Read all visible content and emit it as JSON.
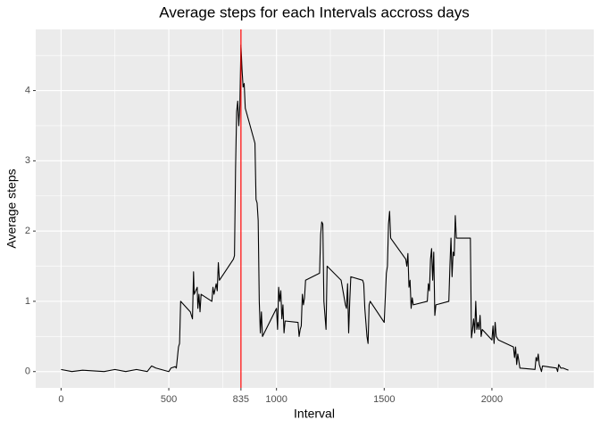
{
  "chart_data": {
    "type": "line",
    "title": "Average steps for each Intervals accross days",
    "x_label": "Interval",
    "y_label": "Average steps",
    "xlim": [
      -117.75,
      2472.75
    ],
    "ylim": [
      -0.232,
      4.87
    ],
    "xticks": [
      0,
      500,
      835,
      1000,
      1500,
      2000
    ],
    "yticks": [
      0,
      1,
      2,
      3,
      4
    ],
    "x_minor_ticks": [
      250,
      750,
      1250,
      1750,
      2250
    ],
    "y_minor_ticks": [
      0.5,
      1.5,
      2.5,
      3.5,
      4.5
    ],
    "grid": true,
    "vline": {
      "x": 835,
      "color": "#ff0000"
    },
    "series": [
      {
        "color": "#000000",
        "x": [
          0,
          50,
          100,
          150,
          200,
          250,
          300,
          350,
          400,
          420,
          440,
          500,
          510,
          530,
          535,
          545,
          550,
          555,
          600,
          610,
          615,
          618,
          632,
          635,
          640,
          645,
          650,
          700,
          705,
          710,
          720,
          725,
          730,
          735,
          800,
          805,
          810,
          815,
          820,
          825,
          830,
          835,
          840,
          845,
          850,
          855,
          900,
          905,
          910,
          915,
          920,
          925,
          930,
          935,
          1000,
          1005,
          1010,
          1015,
          1020,
          1025,
          1030,
          1035,
          1040,
          1100,
          1105,
          1110,
          1115,
          1120,
          1125,
          1130,
          1135,
          1200,
          1205,
          1210,
          1215,
          1220,
          1225,
          1230,
          1235,
          1300,
          1320,
          1325,
          1330,
          1335,
          1340,
          1345,
          1400,
          1405,
          1410,
          1415,
          1420,
          1425,
          1430,
          1435,
          1500,
          1505,
          1510,
          1515,
          1520,
          1525,
          1530,
          1600,
          1605,
          1610,
          1615,
          1620,
          1625,
          1630,
          1635,
          1700,
          1705,
          1710,
          1715,
          1720,
          1725,
          1730,
          1735,
          1740,
          1800,
          1805,
          1810,
          1815,
          1820,
          1825,
          1830,
          1835,
          1900,
          1905,
          1910,
          1915,
          1920,
          1925,
          1930,
          1935,
          1940,
          1945,
          1950,
          1955,
          2000,
          2005,
          2010,
          2015,
          2020,
          2030,
          2100,
          2105,
          2110,
          2115,
          2120,
          2130,
          2200,
          2205,
          2210,
          2215,
          2220,
          2230,
          2235,
          2300,
          2305,
          2310,
          2320,
          2330,
          2355
        ],
        "values": [
          0.03,
          0.0,
          0.02,
          0.01,
          0.0,
          0.03,
          0.0,
          0.03,
          0.0,
          0.08,
          0.05,
          0.0,
          0.05,
          0.07,
          0.05,
          0.35,
          0.4,
          1.0,
          0.85,
          0.75,
          1.42,
          1.1,
          1.2,
          0.9,
          1.1,
          0.85,
          1.1,
          1.0,
          1.2,
          1.1,
          1.25,
          1.15,
          1.55,
          1.3,
          1.6,
          1.65,
          2.9,
          3.7,
          3.85,
          3.5,
          3.8,
          4.65,
          4.3,
          4.05,
          4.1,
          3.75,
          3.25,
          2.45,
          2.4,
          2.15,
          1.0,
          0.55,
          0.85,
          0.5,
          0.9,
          0.6,
          1.2,
          1.0,
          1.15,
          0.75,
          0.95,
          0.55,
          0.72,
          0.7,
          0.5,
          0.6,
          0.65,
          1.1,
          0.95,
          1.05,
          1.3,
          1.4,
          1.95,
          2.13,
          2.1,
          1.0,
          0.8,
          0.6,
          1.5,
          1.3,
          0.95,
          0.9,
          1.25,
          0.55,
          1.0,
          1.35,
          1.3,
          1.25,
          0.9,
          0.7,
          0.5,
          0.4,
          0.95,
          1.0,
          0.7,
          1.05,
          1.4,
          1.5,
          2.1,
          2.28,
          1.9,
          1.6,
          1.5,
          1.68,
          1.2,
          1.3,
          0.9,
          1.05,
          0.95,
          1.0,
          1.25,
          1.15,
          1.6,
          1.75,
          1.3,
          1.7,
          0.8,
          0.95,
          1.0,
          1.5,
          1.9,
          1.35,
          1.7,
          1.65,
          2.22,
          1.9,
          1.9,
          0.48,
          0.6,
          0.75,
          0.55,
          1.0,
          0.6,
          0.7,
          0.6,
          0.8,
          0.5,
          0.6,
          0.45,
          0.65,
          0.4,
          0.7,
          0.5,
          0.45,
          0.35,
          0.2,
          0.35,
          0.1,
          0.25,
          0.05,
          0.03,
          0.2,
          0.15,
          0.25,
          0.1,
          0.0,
          0.08,
          0.05,
          0.0,
          0.1,
          0.05,
          0.05,
          0.02
        ]
      }
    ]
  }
}
